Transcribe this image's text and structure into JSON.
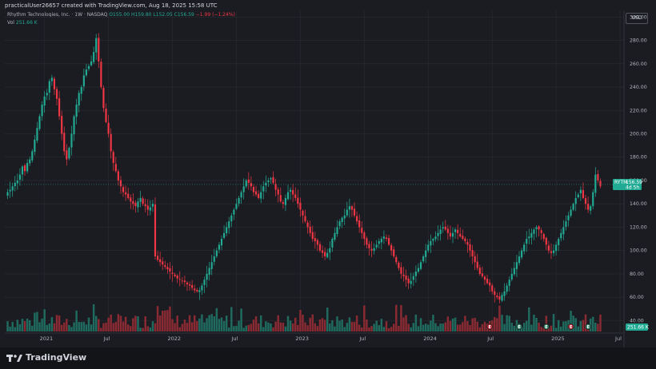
{
  "header": {
    "text": "practicalUser26657 created with TradingView.com, Aug 18, 2025 15:58 UTC"
  },
  "legend": {
    "symbol": "Rhythm Technologies, Inc. · 1W · NASDAQ",
    "o": "O155.00",
    "h": "H159.80",
    "l": "L152.05",
    "c": "C156.59",
    "chg": "−1.99 (−1.24%)"
  },
  "volume": {
    "label": "Vol",
    "value": "251.66 K"
  },
  "currency": "USD",
  "price_tag": {
    "symbol": "RYTM",
    "price": "156.59",
    "countdown": "4d 5h"
  },
  "volume_tag": "251.66 K",
  "brand": "TradingView",
  "colors": {
    "up": "#22ab94",
    "down": "#f23645",
    "up_vol": "#1f6b5f",
    "down_vol": "#8a2a33",
    "grid": "#2a2c33",
    "bg": "#1b1c21"
  },
  "chart_data": {
    "type": "candlestick",
    "timeframe": "1W",
    "ylim": [
      30,
      305
    ],
    "yticks": [
      "40.00",
      "60.00",
      "80.00",
      "100.00",
      "120.00",
      "140.00",
      "160.00",
      "180.00",
      "200.00",
      "220.00",
      "240.00",
      "260.00",
      "280.00",
      "300.00"
    ],
    "xtick_labels": [
      "2021",
      "Jul",
      "2022",
      "Jul",
      "2023",
      "Jul",
      "2024",
      "Jul",
      "2025",
      "Jul"
    ],
    "xtick_index": [
      15,
      41,
      67,
      93,
      119,
      145,
      171,
      197,
      223,
      249
    ],
    "path_closes": [
      150,
      152,
      155,
      158,
      160,
      165,
      172,
      168,
      175,
      178,
      185,
      195,
      205,
      215,
      225,
      232,
      235,
      245,
      248,
      238,
      230,
      215,
      200,
      185,
      178,
      188,
      200,
      215,
      225,
      235,
      240,
      250,
      255,
      258,
      262,
      270,
      282,
      262,
      240,
      222,
      210,
      200,
      185,
      175,
      168,
      160,
      155,
      150,
      148,
      145,
      142,
      140,
      138,
      142,
      145,
      140,
      138,
      135,
      137,
      140,
      95,
      92,
      90,
      88,
      86,
      84,
      82,
      80,
      78,
      76,
      75,
      74,
      73,
      71,
      70,
      68,
      66,
      65,
      66,
      70,
      75,
      80,
      85,
      90,
      95,
      100,
      105,
      110,
      115,
      120,
      125,
      130,
      135,
      140,
      145,
      150,
      155,
      160,
      158,
      155,
      150,
      148,
      145,
      150,
      155,
      158,
      160,
      162,
      158,
      152,
      148,
      142,
      140,
      145,
      150,
      152,
      148,
      145,
      140,
      135,
      130,
      125,
      120,
      115,
      110,
      108,
      105,
      100,
      98,
      95,
      98,
      102,
      110,
      115,
      120,
      125,
      128,
      130,
      135,
      138,
      135,
      130,
      125,
      120,
      115,
      110,
      105,
      102,
      100,
      102,
      105,
      108,
      110,
      112,
      110,
      105,
      100,
      95,
      90,
      85,
      80,
      78,
      75,
      72,
      74,
      78,
      82,
      85,
      90,
      95,
      100,
      105,
      108,
      110,
      112,
      115,
      118,
      120,
      118,
      115,
      112,
      115,
      118,
      115,
      112,
      110,
      108,
      105,
      100,
      95,
      90,
      85,
      80,
      78,
      75,
      72,
      70,
      65,
      62,
      60,
      58,
      62,
      65,
      70,
      75,
      80,
      85,
      90,
      95,
      100,
      105,
      110,
      112,
      115,
      118,
      120,
      118,
      115,
      110,
      105,
      100,
      98,
      100,
      105,
      110,
      115,
      120,
      125,
      130,
      135,
      140,
      145,
      148,
      152,
      145,
      140,
      135,
      138,
      150,
      165,
      160,
      155
    ],
    "last": {
      "close": 156.59,
      "high": 159.8,
      "low": 152.05,
      "open": 155.0
    },
    "price_line": 156.59
  }
}
